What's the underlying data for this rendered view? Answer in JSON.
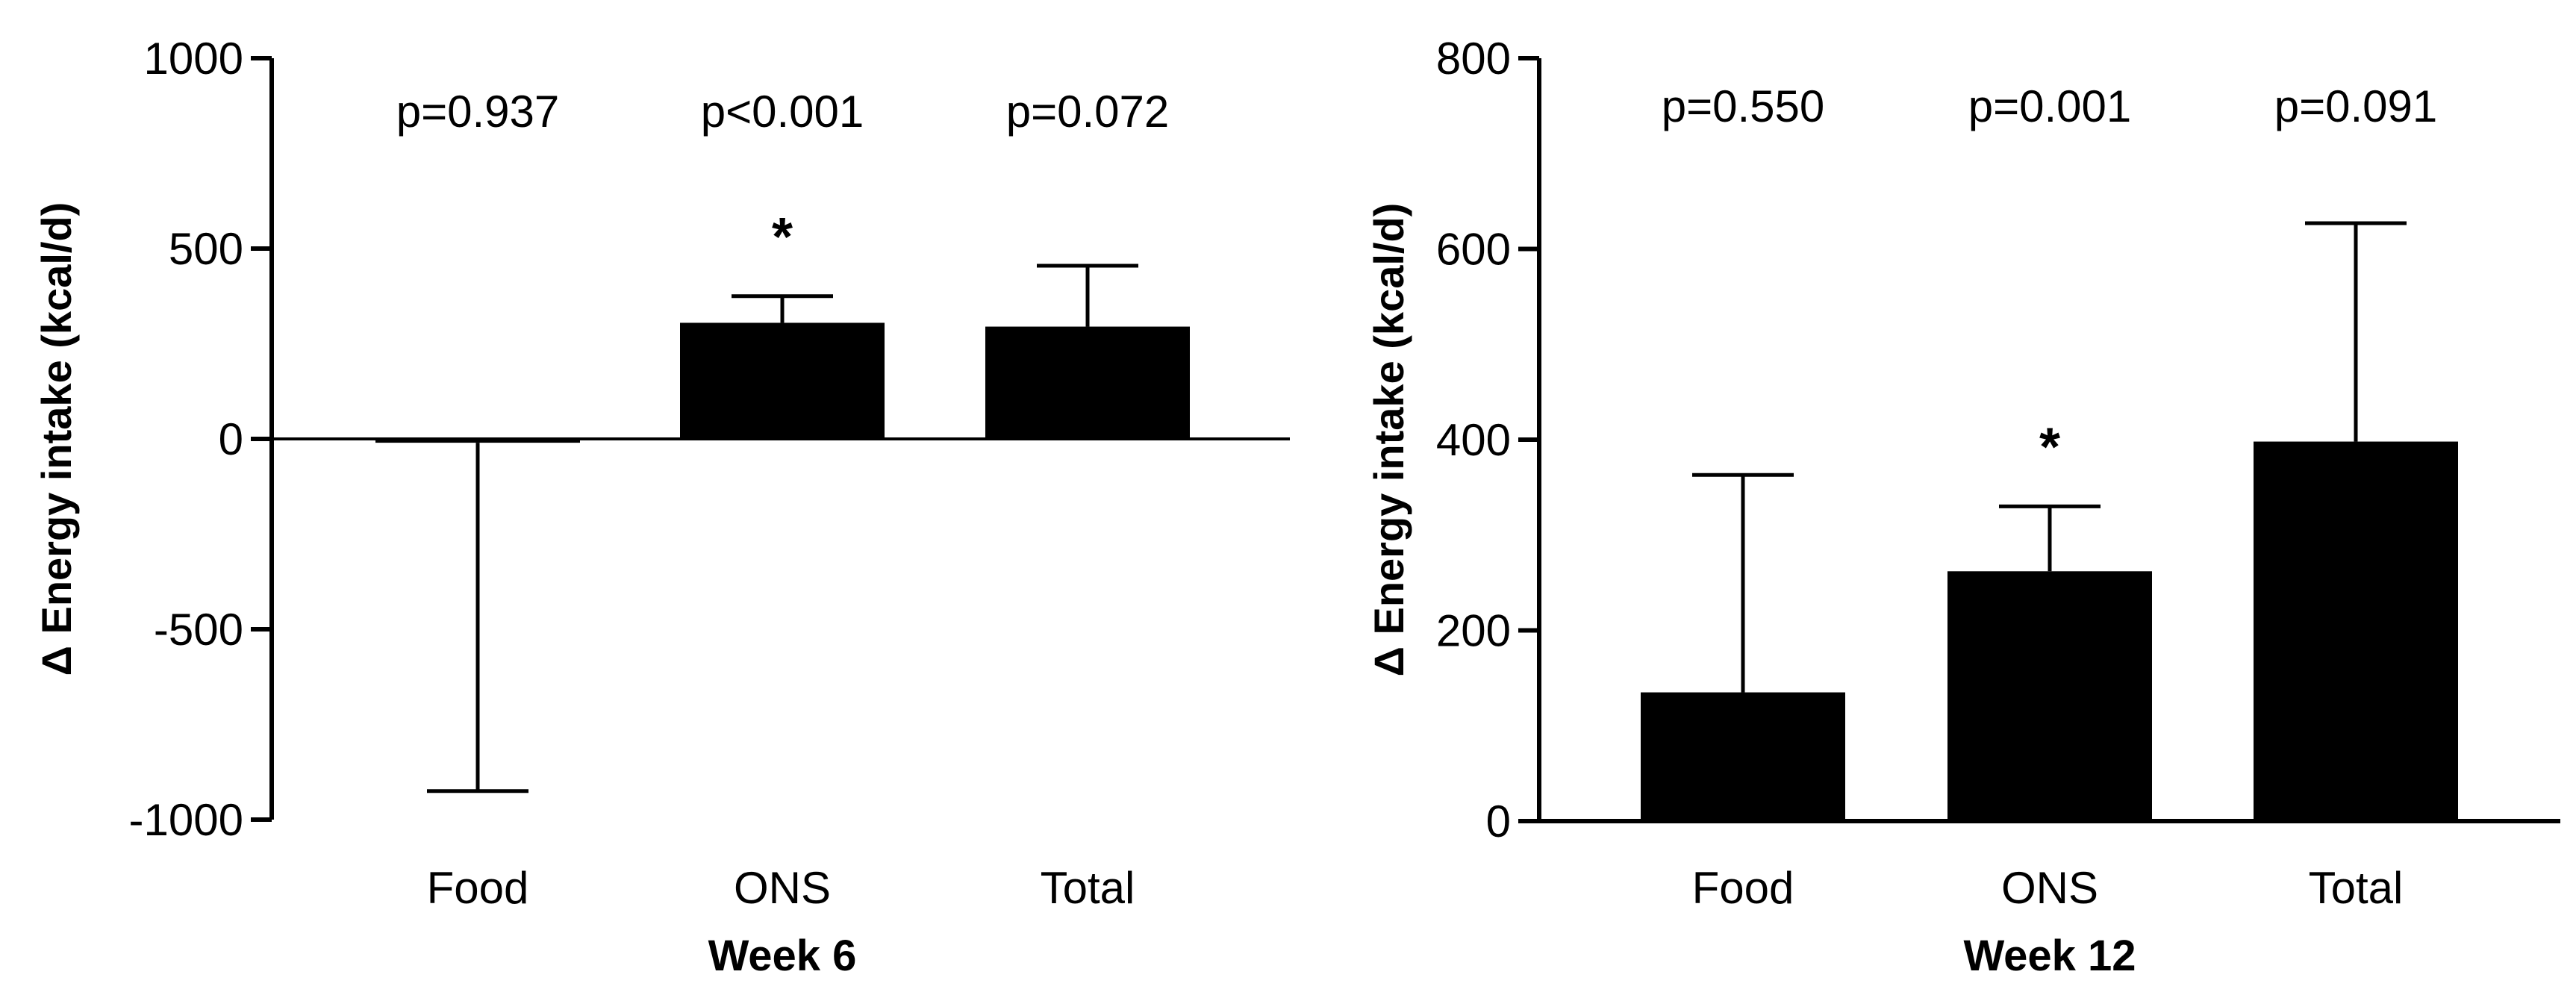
{
  "chart_data": [
    {
      "type": "bar",
      "xlabel": "Week 6",
      "ylabel": "Δ Energy intake  (kcal/d)",
      "ylim": [
        -1000,
        1000
      ],
      "yticks": [
        -1000,
        -500,
        0,
        500,
        1000
      ],
      "yticklabels": [
        "-1000",
        "-500",
        "0",
        "500",
        "1000"
      ],
      "categories": [
        "Food",
        "ONS",
        "Total"
      ],
      "values": [
        -10,
        305,
        295
      ],
      "error_upper": [
        -925,
        375,
        455
      ],
      "error_direction": [
        "down",
        "up",
        "up"
      ],
      "p_values": [
        "p=0.937",
        "p<0.001",
        "p=0.072"
      ],
      "significance": [
        "",
        "*",
        ""
      ],
      "bar_color": "#000000"
    },
    {
      "type": "bar",
      "xlabel": "Week 12",
      "ylabel": "Δ Energy intake (kcal/d)",
      "ylim": [
        0,
        800
      ],
      "yticks": [
        0,
        200,
        400,
        600,
        800
      ],
      "yticklabels": [
        "0",
        "200",
        "400",
        "600",
        "800"
      ],
      "categories": [
        "Food",
        "ONS",
        "Total"
      ],
      "values": [
        135,
        262,
        398
      ],
      "error_upper": [
        363,
        330,
        627
      ],
      "error_direction": [
        "up",
        "up",
        "up"
      ],
      "p_values": [
        "p=0.550",
        "p=0.001",
        "p=0.091"
      ],
      "significance": [
        "",
        "*",
        ""
      ],
      "bar_color": "#000000"
    }
  ]
}
